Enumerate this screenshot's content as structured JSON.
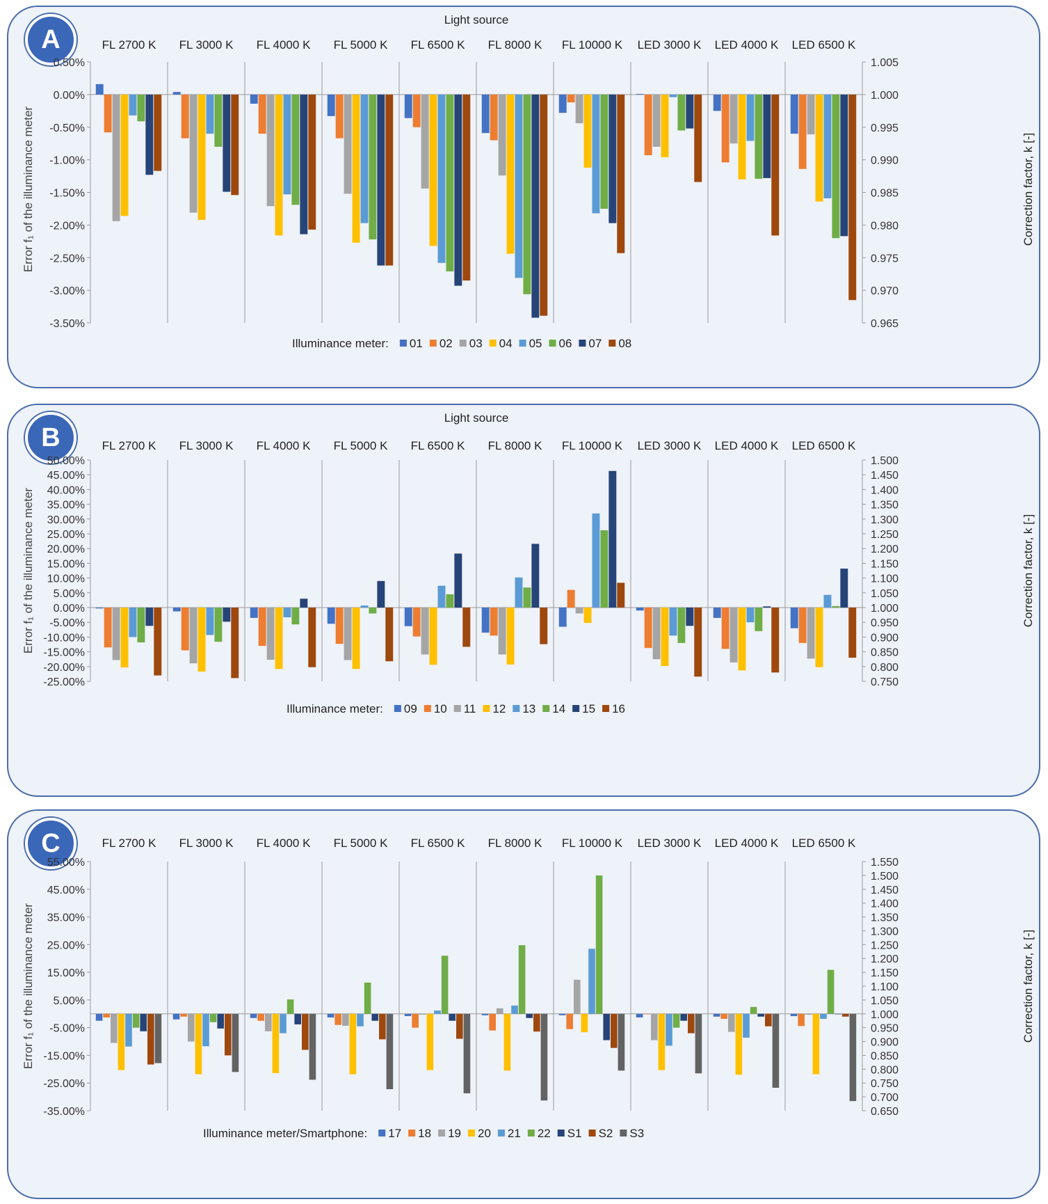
{
  "panels": [
    {
      "letter": "A",
      "super_label": "Light source",
      "y_axis_left": "Error f₁ of the illuminance meter",
      "y_axis_right": "Correction factor, k [-]",
      "legend_title": "Illuminance meter:"
    },
    {
      "letter": "B",
      "super_label": "Light source",
      "y_axis_left": "Error f₁ of the illuminance meter",
      "y_axis_right": "Correction factor, k [-]",
      "legend_title": "Illuminance meter:"
    },
    {
      "letter": "C",
      "super_label": "",
      "y_axis_left": "Error f₁ of the illuminance meter",
      "y_axis_right": "Correction factor, k [-]",
      "legend_title": "Illuminance meter/Smartphone:"
    }
  ],
  "chart_data": [
    {
      "type": "bar",
      "title": "",
      "xlabel": "Light source",
      "ylabel": "Error f1 of the illuminance meter",
      "y2label": "Correction factor, k [-]",
      "categories": [
        "FL 2700 K",
        "FL 3000 K",
        "FL 4000 K",
        "FL 5000 K",
        "FL 6500 K",
        "FL 8000 K",
        "FL 10000 K",
        "LED 3000 K",
        "LED 4000 K",
        "LED 6500 K"
      ],
      "ylim": [
        -3.5,
        0.5
      ],
      "yticks": [
        0.5,
        0,
        -0.5,
        -1,
        -1.5,
        -2,
        -2.5,
        -3,
        -3.5
      ],
      "ytick_labels": [
        "0.50%",
        "0.00%",
        "-0.50%",
        "-1.00%",
        "-1.50%",
        "-2.00%",
        "-2.50%",
        "-3.00%",
        "-3.50%"
      ],
      "y2lim": [
        0.965,
        1.005
      ],
      "y2ticks": [
        "1.005",
        "1.000",
        "0.995",
        "0.990",
        "0.985",
        "0.980",
        "0.975",
        "0.970",
        "0.965"
      ],
      "legend_position": "bottom",
      "series": [
        {
          "name": "01",
          "color": "#4472c4",
          "values": [
            0.16,
            0.04,
            -0.14,
            -0.33,
            -0.36,
            -0.59,
            -0.28,
            0.01,
            -0.25,
            -0.6
          ]
        },
        {
          "name": "02",
          "color": "#ed7d31",
          "values": [
            -0.58,
            -0.67,
            -0.6,
            -0.67,
            -0.5,
            -0.7,
            -0.12,
            -0.93,
            -1.04,
            -1.14
          ]
        },
        {
          "name": "03",
          "color": "#a5a5a5",
          "values": [
            -1.94,
            -1.81,
            -1.71,
            -1.52,
            -1.44,
            -1.24,
            -0.44,
            -0.8,
            -0.75,
            -0.61
          ]
        },
        {
          "name": "04",
          "color": "#ffc000",
          "values": [
            -1.86,
            -1.92,
            -2.16,
            -2.27,
            -2.32,
            -2.44,
            -1.12,
            -0.96,
            -1.3,
            -1.64
          ]
        },
        {
          "name": "05",
          "color": "#5b9bd5",
          "values": [
            -0.32,
            -0.6,
            -1.53,
            -1.97,
            -2.58,
            -2.81,
            -1.82,
            -0.04,
            -0.71,
            -1.59
          ]
        },
        {
          "name": "06",
          "color": "#70ad47",
          "values": [
            -0.41,
            -0.8,
            -1.69,
            -2.22,
            -2.71,
            -3.06,
            -1.75,
            -0.55,
            -1.29,
            -2.2
          ]
        },
        {
          "name": "07",
          "color": "#264478",
          "values": [
            -1.23,
            -1.49,
            -2.14,
            -2.62,
            -2.93,
            -3.42,
            -1.97,
            -0.52,
            -1.28,
            -2.17
          ]
        },
        {
          "name": "08",
          "color": "#9e480e",
          "values": [
            -1.17,
            -1.54,
            -2.07,
            -2.62,
            -2.85,
            -3.39,
            -2.43,
            -1.34,
            -2.16,
            -3.15
          ]
        }
      ]
    },
    {
      "type": "bar",
      "title": "",
      "xlabel": "Light source",
      "ylabel": "Error f1 of the illuminance meter",
      "y2label": "Correction factor, k [-]",
      "categories": [
        "FL 2700 K",
        "FL 3000 K",
        "FL 4000 K",
        "FL 5000 K",
        "FL 6500 K",
        "FL 8000 K",
        "FL 10000 K",
        "LED 3000 K",
        "LED 4000 K",
        "LED 6500 K"
      ],
      "ylim": [
        -25,
        50
      ],
      "yticks": [
        50,
        45,
        40,
        35,
        30,
        25,
        20,
        15,
        10,
        5,
        0,
        -5,
        -10,
        -15,
        -20,
        -25
      ],
      "ytick_labels": [
        "50.00%",
        "45.00%",
        "40.00%",
        "35.00%",
        "30.00%",
        "25.00%",
        "20.00%",
        "15.00%",
        "10.00%",
        "5.00%",
        "0.00%",
        "-5.00%",
        "-10.00%",
        "-15.00%",
        "-20.00%",
        "-25.00%"
      ],
      "y2lim": [
        0.75,
        1.5
      ],
      "y2ticks": [
        "1.500",
        "1.450",
        "1.400",
        "1.350",
        "1.300",
        "1.250",
        "1.200",
        "1.150",
        "1.100",
        "1.050",
        "1.000",
        "0.950",
        "0.900",
        "0.850",
        "0.800",
        "0.750"
      ],
      "legend_position": "bottom",
      "series": [
        {
          "name": "09",
          "color": "#4472c4",
          "values": [
            -0.3,
            -1.3,
            -3.5,
            -5.5,
            -6.3,
            -8.5,
            -6.5,
            -1.0,
            -3.5,
            -7.0
          ]
        },
        {
          "name": "10",
          "color": "#ed7d31",
          "values": [
            -13.5,
            -14.5,
            -13.0,
            -12.3,
            -9.8,
            -9.5,
            6.0,
            -13.7,
            -14.0,
            -12.0
          ]
        },
        {
          "name": "11",
          "color": "#a5a5a5",
          "values": [
            -17.8,
            -18.9,
            -17.7,
            -17.8,
            -15.9,
            -15.9,
            -2.0,
            -17.5,
            -18.6,
            -17.3
          ]
        },
        {
          "name": "12",
          "color": "#ffc000",
          "values": [
            -20.3,
            -21.7,
            -20.8,
            -20.8,
            -19.4,
            -19.3,
            -5.2,
            -19.8,
            -21.3,
            -20.2
          ]
        },
        {
          "name": "13",
          "color": "#5b9bd5",
          "values": [
            -10.0,
            -9.3,
            -3.3,
            0.7,
            7.4,
            10.2,
            31.9,
            -9.5,
            -5.0,
            4.3
          ]
        },
        {
          "name": "14",
          "color": "#70ad47",
          "values": [
            -11.8,
            -11.6,
            -5.7,
            -2.0,
            4.5,
            6.8,
            26.2,
            -12.0,
            -8.0,
            0.5
          ]
        },
        {
          "name": "15",
          "color": "#264478",
          "values": [
            -6.2,
            -4.8,
            3.0,
            9.0,
            18.3,
            21.6,
            46.3,
            -6.2,
            0.4,
            13.2
          ]
        },
        {
          "name": "16",
          "color": "#9e480e",
          "values": [
            -23.0,
            -23.9,
            -20.2,
            -18.2,
            -13.3,
            -12.4,
            8.4,
            -23.4,
            -22.0,
            -17.0
          ]
        }
      ]
    },
    {
      "type": "bar",
      "title": "",
      "xlabel": "",
      "ylabel": "Error f1 of the illuminance meter",
      "y2label": "Correction factor, k [-]",
      "categories": [
        "FL 2700 K",
        "FL 3000 K",
        "FL 4000 K",
        "FL 5000 K",
        "FL 6500 K",
        "FL 8000 K",
        "FL 10000 K",
        "LED 3000 K",
        "LED 4000 K",
        "LED 6500 K"
      ],
      "ylim": [
        -35,
        55
      ],
      "yticks": [
        55,
        45,
        35,
        25,
        15,
        5,
        -5,
        -15,
        -25,
        -35
      ],
      "ytick_labels": [
        "55.00%",
        "45.00%",
        "35.00%",
        "25.00%",
        "15.00%",
        "5.00%",
        "-5.00%",
        "-15.00%",
        "-25.00%",
        "-35.00%"
      ],
      "y2lim": [
        0.65,
        1.55
      ],
      "y2ticks": [
        "1.550",
        "1.500",
        "1.450",
        "1.400",
        "1.350",
        "1.300",
        "1.250",
        "1.200",
        "1.150",
        "1.100",
        "1.050",
        "1.000",
        "0.950",
        "0.900",
        "0.850",
        "0.800",
        "0.750",
        "0.700",
        "0.650"
      ],
      "legend_position": "bottom",
      "series": [
        {
          "name": "17",
          "color": "#4472c4",
          "values": [
            -2.5,
            -2.0,
            -1.5,
            -1.3,
            -0.8,
            -0.5,
            -0.5,
            -1.3,
            -1.0,
            -0.8
          ]
        },
        {
          "name": "18",
          "color": "#ed7d31",
          "values": [
            -1.3,
            -1.0,
            -2.5,
            -4.0,
            -5.0,
            -6.0,
            -5.5,
            0.0,
            -1.8,
            -4.4
          ]
        },
        {
          "name": "19",
          "color": "#a5a5a5",
          "values": [
            -10.5,
            -10.0,
            -6.3,
            -4.3,
            -0.3,
            2.0,
            12.3,
            -9.5,
            -6.5,
            -0.3
          ]
        },
        {
          "name": "20",
          "color": "#ffc000",
          "values": [
            -20.3,
            -21.8,
            -21.4,
            -21.8,
            -20.3,
            -20.5,
            -6.6,
            -20.3,
            -22.0,
            -21.8
          ]
        },
        {
          "name": "21",
          "color": "#5b9bd5",
          "values": [
            -11.8,
            -11.7,
            -7.0,
            -4.5,
            1.2,
            3.0,
            23.5,
            -11.5,
            -8.6,
            -1.8
          ]
        },
        {
          "name": "22",
          "color": "#70ad47",
          "values": [
            -5.0,
            -3.0,
            5.2,
            11.3,
            21.0,
            24.8,
            50.0,
            -5.0,
            2.5,
            15.9
          ]
        },
        {
          "name": "S1",
          "color": "#264478",
          "values": [
            -6.3,
            -5.3,
            -3.8,
            -2.5,
            -2.5,
            -1.5,
            -9.5,
            -2.5,
            -1.0,
            0.0
          ]
        },
        {
          "name": "S2",
          "color": "#9e480e",
          "values": [
            -18.3,
            -15.0,
            -13.0,
            -9.2,
            -9.0,
            -6.4,
            -12.3,
            -7.0,
            -4.5,
            -1.0
          ]
        },
        {
          "name": "S3",
          "color": "#636363",
          "values": [
            -17.8,
            -21.0,
            -23.8,
            -27.2,
            -28.7,
            -31.3,
            -20.5,
            -21.5,
            -26.7,
            -31.5
          ]
        }
      ]
    }
  ]
}
